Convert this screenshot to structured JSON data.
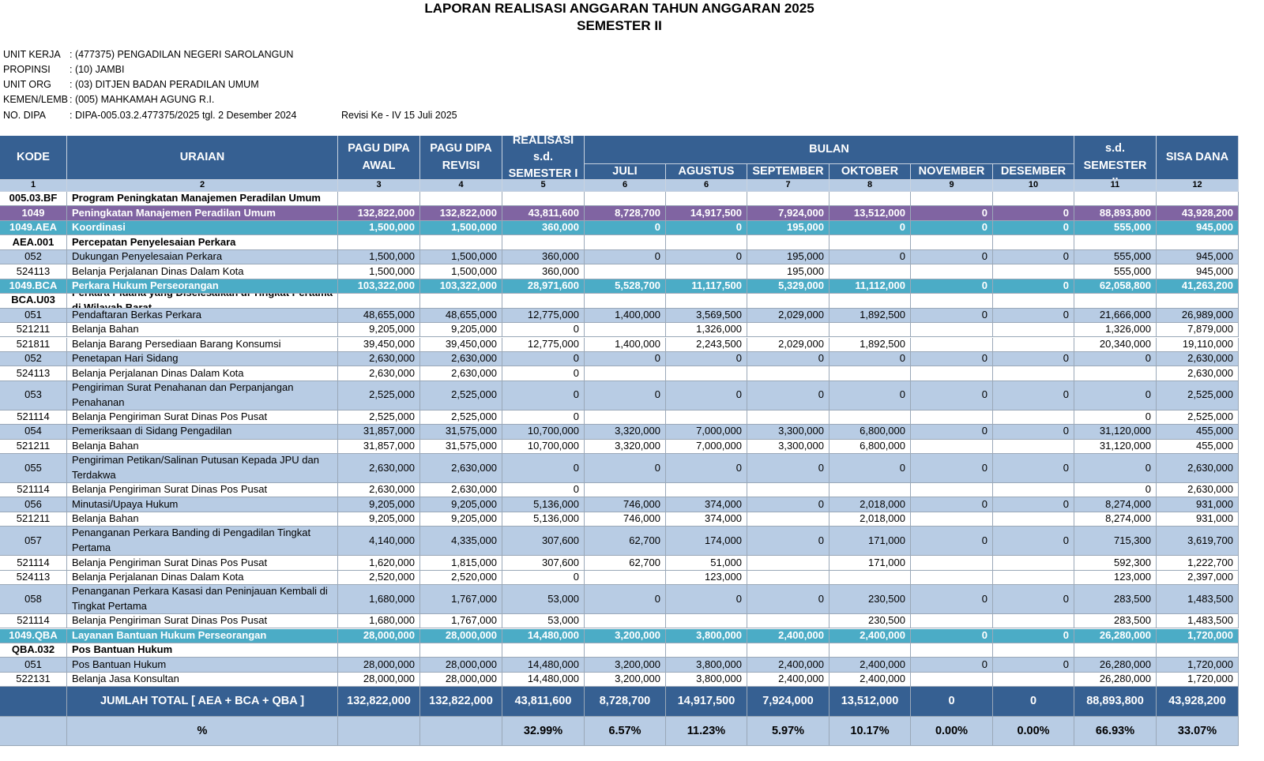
{
  "header": {
    "title": "LAPORAN REALISASI ANGGARAN TAHUN ANGGARAN 2025",
    "subtitle": "SEMESTER II"
  },
  "info": {
    "rows": [
      [
        "UNIT KERJA",
        ": (477375) PENGADILAN NEGERI SAROLANGUN"
      ],
      [
        "PROPINSI",
        ": (10) JAMBI"
      ],
      [
        "UNIT ORG",
        ": (03) DITJEN BADAN PERADILAN UMUM"
      ],
      [
        "KEMEN/LEMB",
        ": (005) MAHKAMAH AGUNG R.I."
      ],
      [
        "NO. DIPA",
        ": DIPA-005.03.2.477375/2025 tgl. 2 Desember 2024"
      ]
    ],
    "revisi": "Revisi Ke - IV 15 Juli 2025"
  },
  "table": {
    "header_color": "#366092",
    "columns": [
      "KODE",
      "URAIAN",
      "PAGU DIPA AWAL",
      "PAGU DIPA REVISI",
      "REALISASI s.d. SEMESTER I",
      "BULAN",
      "REALISASI s.d. SEMESTER II",
      "SISA DANA"
    ],
    "months": [
      "JULI",
      "AGUSTUS",
      "SEPTEMBER",
      "OKTOBER",
      "NOVEMBER",
      "DESEMBER"
    ],
    "numbers": [
      "1",
      "2",
      "3",
      "4",
      "5",
      "6",
      "6",
      "7",
      "8",
      "9",
      "10",
      "11",
      "12"
    ],
    "rows": [
      {
        "color": "#ffffff",
        "cells": [
          "005.03.BF",
          "Program Peningkatan Manajemen Peradilan Umum",
          null,
          null,
          null,
          null,
          null,
          null,
          null,
          null,
          null,
          null,
          null
        ]
      },
      {
        "color": "#8064a2",
        "cells": [
          "1049",
          "Peningkatan Manajemen Peradilan Umum",
          "132,822,000",
          "132,822,000",
          "43,811,600",
          "8,728,700",
          "14,917,500",
          "7,924,000",
          "13,512,000",
          "0",
          "0",
          "88,893,800",
          "43,928,200"
        ]
      },
      {
        "color": "#4bacc6",
        "cells": [
          "1049.AEA",
          "Koordinasi",
          "1,500,000",
          "1,500,000",
          "360,000",
          "0",
          "0",
          "195,000",
          "0",
          "0",
          "0",
          "555,000",
          "945,000"
        ]
      },
      {
        "color": "#ffffff",
        "cells": [
          "AEA.001",
          "Percepatan Penyelesaian Perkara",
          null,
          null,
          null,
          null,
          null,
          null,
          null,
          null,
          null,
          null,
          null
        ]
      },
      {
        "color": "#b8cce4",
        "cells": [
          "052",
          "Dukungan Penyelesaian Perkara",
          "1,500,000",
          "1,500,000",
          "360,000",
          "0",
          "0",
          "195,000",
          "0",
          "0",
          "0",
          "555,000",
          "945,000"
        ]
      },
      {
        "color": "#ffffff",
        "cells": [
          "524113",
          "Belanja Perjalanan Dinas Dalam Kota",
          "1,500,000",
          "1,500,000",
          "360,000",
          null,
          null,
          "195,000",
          null,
          null,
          null,
          "555,000",
          "945,000"
        ]
      },
      {
        "color": "#4bacc6",
        "cells": [
          "1049.BCA",
          "Perkara Hukum Perseorangan",
          "103,322,000",
          "103,322,000",
          "28,971,600",
          "5,528,700",
          "11,117,500",
          "5,329,000",
          "11,112,000",
          "0",
          "0",
          "62,058,800",
          "41,263,200"
        ]
      },
      {
        "color": "#ffffff",
        "cells": [
          "BCA.U03",
          "Perkara Pidana yang Diselesaikan di Tingkat Pertama di Wilayah Barat",
          null,
          null,
          null,
          null,
          null,
          null,
          null,
          null,
          null,
          null,
          null
        ]
      },
      {
        "color": "#b8cce4",
        "cells": [
          "051",
          "Pendaftaran Berkas Perkara",
          "48,655,000",
          "48,655,000",
          "12,775,000",
          "1,400,000",
          "3,569,500",
          "2,029,000",
          "1,892,500",
          "0",
          "0",
          "21,666,000",
          "26,989,000"
        ]
      },
      {
        "color": "#ffffff",
        "cells": [
          "521211",
          "Belanja Bahan",
          "9,205,000",
          "9,205,000",
          "0",
          null,
          "1,326,000",
          null,
          null,
          null,
          null,
          "1,326,000",
          "7,879,000"
        ]
      },
      {
        "color": "#ffffff",
        "cells": [
          "521811",
          "Belanja Barang Persediaan Barang Konsumsi",
          "39,450,000",
          "39,450,000",
          "12,775,000",
          "1,400,000",
          "2,243,500",
          "2,029,000",
          "1,892,500",
          null,
          null,
          "20,340,000",
          "19,110,000"
        ]
      },
      {
        "color": "#b8cce4",
        "cells": [
          "052",
          "Penetapan Hari Sidang",
          "2,630,000",
          "2,630,000",
          "0",
          "0",
          "0",
          "0",
          "0",
          "0",
          "0",
          "0",
          "2,630,000"
        ]
      },
      {
        "color": "#ffffff",
        "cells": [
          "524113",
          "Belanja Perjalanan Dinas Dalam Kota",
          "2,630,000",
          "2,630,000",
          "0",
          null,
          null,
          null,
          null,
          null,
          null,
          null,
          "2,630,000"
        ]
      },
      {
        "color": "#b8cce4",
        "cells": [
          "053",
          "Pengiriman Surat Penahanan dan Perpanjangan Penahanan",
          "2,525,000",
          "2,525,000",
          "0",
          "0",
          "0",
          "0",
          "0",
          "0",
          "0",
          "0",
          "2,525,000"
        ]
      },
      {
        "color": "#ffffff",
        "cells": [
          "521114",
          "Belanja Pengiriman Surat Dinas Pos Pusat",
          "2,525,000",
          "2,525,000",
          "0",
          null,
          null,
          null,
          null,
          null,
          null,
          "0",
          "2,525,000"
        ]
      },
      {
        "color": "#b8cce4",
        "cells": [
          "054",
          "Pemeriksaan di Sidang Pengadilan",
          "31,857,000",
          "31,575,000",
          "10,700,000",
          "3,320,000",
          "7,000,000",
          "3,300,000",
          "6,800,000",
          "0",
          "0",
          "31,120,000",
          "455,000"
        ]
      },
      {
        "color": "#ffffff",
        "cells": [
          "521211",
          "Belanja Bahan",
          "31,857,000",
          "31,575,000",
          "10,700,000",
          "3,320,000",
          "7,000,000",
          "3,300,000",
          "6,800,000",
          null,
          null,
          "31,120,000",
          "455,000"
        ]
      },
      {
        "color": "#b8cce4",
        "cells": [
          "055",
          "Pengiriman Petikan/Salinan Putusan Kepada JPU dan Terdakwa",
          "2,630,000",
          "2,630,000",
          "0",
          "0",
          "0",
          "0",
          "0",
          "0",
          "0",
          "0",
          "2,630,000"
        ]
      },
      {
        "color": "#ffffff",
        "cells": [
          "521114",
          "Belanja Pengiriman Surat Dinas Pos Pusat",
          "2,630,000",
          "2,630,000",
          "0",
          null,
          null,
          null,
          null,
          null,
          null,
          "0",
          "2,630,000"
        ]
      },
      {
        "color": "#b8cce4",
        "cells": [
          "056",
          "Minutasi/Upaya Hukum",
          "9,205,000",
          "9,205,000",
          "5,136,000",
          "746,000",
          "374,000",
          "0",
          "2,018,000",
          "0",
          "0",
          "8,274,000",
          "931,000"
        ]
      },
      {
        "color": "#ffffff",
        "cells": [
          "521211",
          "Belanja Bahan",
          "9,205,000",
          "9,205,000",
          "5,136,000",
          "746,000",
          "374,000",
          null,
          "2,018,000",
          null,
          null,
          "8,274,000",
          "931,000"
        ]
      },
      {
        "color": "#b8cce4",
        "cells": [
          "057",
          "Penanganan Perkara Banding di Pengadilan Tingkat Pertama",
          "4,140,000",
          "4,335,000",
          "307,600",
          "62,700",
          "174,000",
          "0",
          "171,000",
          "0",
          "0",
          "715,300",
          "3,619,700"
        ]
      },
      {
        "color": "#ffffff",
        "cells": [
          "521114",
          "Belanja Pengiriman Surat Dinas Pos Pusat",
          "1,620,000",
          "1,815,000",
          "307,600",
          "62,700",
          "51,000",
          null,
          "171,000",
          null,
          null,
          "592,300",
          "1,222,700"
        ]
      },
      {
        "color": "#ffffff",
        "cells": [
          "524113",
          "Belanja Perjalanan Dinas Dalam Kota",
          "2,520,000",
          "2,520,000",
          "0",
          null,
          "123,000",
          null,
          null,
          null,
          null,
          "123,000",
          "2,397,000"
        ]
      },
      {
        "color": "#b8cce4",
        "cells": [
          "058",
          "Penanganan Perkara Kasasi dan Peninjauan Kembali di Tingkat Pertama",
          "1,680,000",
          "1,767,000",
          "53,000",
          "0",
          "0",
          "0",
          "230,500",
          "0",
          "0",
          "283,500",
          "1,483,500"
        ]
      },
      {
        "color": "#ffffff",
        "cells": [
          "521114",
          "Belanja Pengiriman Surat Dinas Pos Pusat",
          "1,680,000",
          "1,767,000",
          "53,000",
          null,
          null,
          null,
          "230,500",
          null,
          null,
          "283,500",
          "1,483,500"
        ]
      },
      {
        "color": "#4bacc6",
        "cells": [
          "1049.QBA",
          "Layanan Bantuan Hukum Perseorangan",
          "28,000,000",
          "28,000,000",
          "14,480,000",
          "3,200,000",
          "3,800,000",
          "2,400,000",
          "2,400,000",
          "0",
          "0",
          "26,280,000",
          "1,720,000"
        ]
      },
      {
        "color": "#ffffff",
        "cells": [
          "QBA.032",
          "Pos Bantuan Hukum",
          null,
          null,
          null,
          null,
          null,
          null,
          null,
          null,
          null,
          null,
          null
        ]
      },
      {
        "color": "#b8cce4",
        "cells": [
          "051",
          "Pos Bantuan Hukum",
          "28,000,000",
          "28,000,000",
          "14,480,000",
          "3,200,000",
          "3,800,000",
          "2,400,000",
          "2,400,000",
          "0",
          "0",
          "26,280,000",
          "1,720,000"
        ]
      },
      {
        "color": "#ffffff",
        "cells": [
          "522131",
          "Belanja Jasa Konsultan",
          "28,000,000",
          "28,000,000",
          "14,480,000",
          "3,200,000",
          "3,800,000",
          "2,400,000",
          "2,400,000",
          null,
          null,
          "26,280,000",
          "1,720,000"
        ]
      },
      {
        "color": "#366092",
        "cells": [
          null,
          "JUMLAH TOTAL [ AEA + BCA + QBA ]",
          "132,822,000",
          "132,822,000",
          "43,811,600",
          "8,728,700",
          "14,917,500",
          "7,924,000",
          "13,512,000",
          "0",
          "0",
          "88,893,800",
          "43,928,200"
        ]
      },
      {
        "color": "#b8cce4",
        "cells": [
          null,
          "%",
          null,
          null,
          "32.99%",
          "6.57%",
          "11.23%",
          "5.97%",
          "10.17%",
          "0.00%",
          "0.00%",
          "66.93%",
          "33.07%"
        ]
      }
    ]
  }
}
